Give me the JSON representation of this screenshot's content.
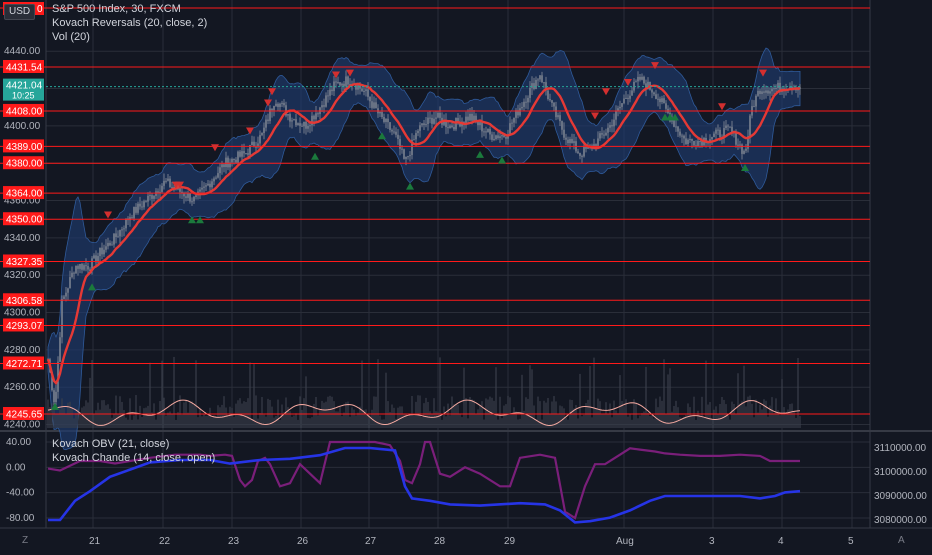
{
  "header": {
    "currency": "USD",
    "symbol_line": "S&P 500 Index, 30, FXCM",
    "indicator1": "Kovach Reversals (20, close, 2)",
    "indicator2": "Vol (20)",
    "osc1": "Kovach OBV (21, close)",
    "osc2": "Kovach Chande (14, close, open)",
    "corner_left": "Z",
    "corner_right": "A"
  },
  "colors": {
    "background": "#131722",
    "grid": "#2a2e39",
    "hline": "#ff1a1a",
    "ma": "#e53935",
    "band": "#1e3a6e",
    "candle": "#8a8f9a",
    "buy": "#1b7a3c",
    "sell": "#d32f2f",
    "obv": "#2634e6",
    "chande": "#7a1f7a",
    "vol_line": "#f5a9a0",
    "current": "#26a69a"
  },
  "price_axis": {
    "ticks": [
      "4440.00",
      "4420.00",
      "4400.00",
      "4380.00",
      "4360.00",
      "4340.00",
      "4320.00",
      "4300.00",
      "4280.00",
      "4260.00",
      "4240.00"
    ],
    "labels": [
      {
        "text": "4431.54",
        "value": 4431.54
      },
      {
        "text": "4408.00",
        "value": 4408.0
      },
      {
        "text": "4389.00",
        "value": 4389.0
      },
      {
        "text": "4380.00",
        "value": 4380.0
      },
      {
        "text": "4364.00",
        "value": 4364.0
      },
      {
        "text": "4350.00",
        "value": 4350.0
      },
      {
        "text": "4327.35",
        "value": 4327.35
      },
      {
        "text": "4306.58",
        "value": 4306.58
      },
      {
        "text": "4293.07",
        "value": 4293.07
      },
      {
        "text": "4272.71",
        "value": 4272.71
      },
      {
        "text": "4245.65",
        "value": 4245.65
      }
    ],
    "current": {
      "price": "4421.04",
      "time": "10:25",
      "value": 4421.04
    },
    "top_label": "0"
  },
  "osc_axis_left": [
    "40.00",
    "0.00",
    "-40.00",
    "-80.00"
  ],
  "osc_axis_right": [
    "3110000.00",
    "3100000.00",
    "3090000.00",
    "3080000.00"
  ],
  "time_axis": [
    "21",
    "22",
    "23",
    "26",
    "27",
    "28",
    "29",
    "Aug",
    "3",
    "4",
    "5"
  ]
}
